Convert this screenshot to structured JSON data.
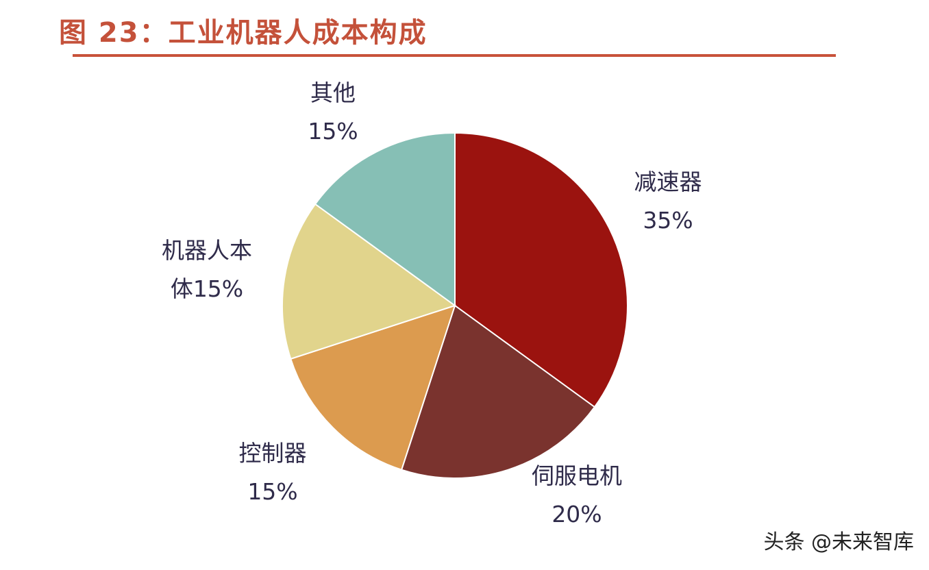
{
  "figure": {
    "title": "图 23：工业机器人成本构成",
    "title_color": "#c4513a",
    "rule_color": "#c8523a"
  },
  "watermark": "头条 @未来智库",
  "chart_data": {
    "type": "pie",
    "title": "图 23：工业机器人成本构成",
    "start_angle_deg": 0,
    "direction": "clockwise",
    "slices": [
      {
        "label": "减速器",
        "pct_label": "35%",
        "value": 35,
        "color": "#9b130f"
      },
      {
        "label": "伺服电机",
        "pct_label": "20%",
        "value": 20,
        "color": "#7a332e"
      },
      {
        "label": "控制器",
        "pct_label": "15%",
        "value": 15,
        "color": "#dc9b4f"
      },
      {
        "label_line1": "机器人本",
        "label_line2": "体15%",
        "value": 15,
        "color": "#e1d48c"
      },
      {
        "label": "其他",
        "pct_label": "15%",
        "value": 15,
        "color": "#86bfb5"
      }
    ]
  }
}
